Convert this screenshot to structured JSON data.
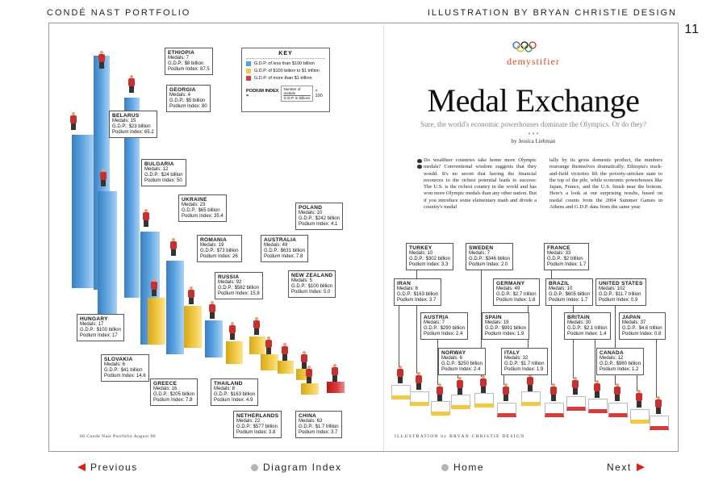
{
  "header": {
    "left": "CONDÉ NAST PORTFOLIO",
    "right": "ILLUSTRATION BY BRYAN CHRISTIE DESIGN",
    "page_number": "11"
  },
  "article": {
    "section": "demystifier",
    "title": "Medal Exchange",
    "subtitle": "Sure, the world's economic powerhouses dominate the Olympics. Or do they?",
    "byline": "by Jessica Liebman",
    "body_col1": "Do wealthier countries take home more Olympic medals? Conventional wisdom suggests that they would. It's no secret that having the financial resources to the richest potential leads to success: The U.S. is the richest country in the world and has won more Olympic medals than any other nation. But if you introduce some elementary math and divide a country's medal",
    "body_col2": "tally by its gross domestic product, the numbers rearrange themselves dramatically. Ethiopia's track-and-field victories lift the poverty-stricken state to the top of the pile, while economic powerhouses like Japan, France, and the U.S. finish near the bottom. Here's a look at our surprising results, based on medal counts from the 2004 Summer Games in Athens and G.D.P. data from the same year."
  },
  "key": {
    "title": "KEY",
    "items": [
      {
        "label": "G.D.P. of less than $100 billion",
        "color": "#4ba3e3"
      },
      {
        "label": "G.D.P. of $100 billion to $1 trillion",
        "color": "#f4c842"
      },
      {
        "label": "G.D.P. of more than $1 trillion",
        "color": "#d93a3a"
      }
    ],
    "podium_label": "PODIUM INDEX =",
    "podium_num": "Number of medals",
    "podium_den": "G.D.P. in billions",
    "podium_mult": "× 100"
  },
  "countries": [
    {
      "id": "ethiopia",
      "name": "ETHIOPIA",
      "medals": "Medals: 7",
      "gdp": "G.D.P.: $8 billion",
      "index": "Podium Index: 87.5",
      "color": "blue"
    },
    {
      "id": "georgia",
      "name": "GEORGIA",
      "medals": "Medals: 4",
      "gdp": "G.D.P.: $5 billion",
      "index": "Podium Index: 80",
      "color": "blue"
    },
    {
      "id": "belarus",
      "name": "BELARUS",
      "medals": "Medals: 15",
      "gdp": "G.D.P.: $23 billion",
      "index": "Podium Index: 65.2",
      "color": "blue"
    },
    {
      "id": "bulgaria",
      "name": "BULGARIA",
      "medals": "Medals: 12",
      "gdp": "G.D.P.: $24 billion",
      "index": "Podium Index: 50",
      "color": "blue"
    },
    {
      "id": "ukraine",
      "name": "UKRAINE",
      "medals": "Medals: 23",
      "gdp": "G.D.P.: $65 billion",
      "index": "Podium Index: 35.4",
      "color": "blue"
    },
    {
      "id": "romania",
      "name": "ROMANIA",
      "medals": "Medals: 19",
      "gdp": "G.D.P.: $73 billion",
      "index": "Podium Index: 26",
      "color": "blue"
    },
    {
      "id": "russia",
      "name": "RUSSIA",
      "medals": "Medals: 92",
      "gdp": "G.D.P.: $582 billion",
      "index": "Podium Index: 15.8",
      "color": "yellow"
    },
    {
      "id": "hungary",
      "name": "HUNGARY",
      "medals": "Medals: 17",
      "gdp": "G.D.P.: $100 billion",
      "index": "Podium Index: 17",
      "color": "yellow"
    },
    {
      "id": "australia",
      "name": "AUSTRALIA",
      "medals": "Medals: 49",
      "gdp": "G.D.P.: $631 billion",
      "index": "Podium Index: 7.8",
      "color": "yellow"
    },
    {
      "id": "poland",
      "name": "POLAND",
      "medals": "Medals: 10",
      "gdp": "G.D.P.: $242 billion",
      "index": "Podium Index: 4.1",
      "color": "yellow"
    },
    {
      "id": "newzealand",
      "name": "NEW ZEALAND",
      "medals": "Medals: 5",
      "gdp": "G.D.P.: $100 billion",
      "index": "Podium Index: 5.0",
      "color": "yellow"
    },
    {
      "id": "slovakia",
      "name": "SLOVAKIA",
      "medals": "Medals: 6",
      "gdp": "G.D.P.: $41 billion",
      "index": "Podium Index: 14.6",
      "color": "blue"
    },
    {
      "id": "greece",
      "name": "GREECE",
      "medals": "Medals: 16",
      "gdp": "G.D.P.: $205 billion",
      "index": "Podium Index: 7.8",
      "color": "yellow"
    },
    {
      "id": "thailand",
      "name": "THAILAND",
      "medals": "Medals: 8",
      "gdp": "G.D.P.: $163 billion",
      "index": "Podium Index: 4.9",
      "color": "yellow"
    },
    {
      "id": "netherlands",
      "name": "NETHERLANDS",
      "medals": "Medals: 22",
      "gdp": "G.D.P.: $577 billion",
      "index": "Podium Index: 3.8",
      "color": "yellow"
    },
    {
      "id": "china",
      "name": "CHINA",
      "medals": "Medals: 63",
      "gdp": "G.D.P.: $1.7 trillion",
      "index": "Podium Index: 3.7",
      "color": "red"
    },
    {
      "id": "turkey",
      "name": "TURKEY",
      "medals": "Medals: 10",
      "gdp": "G.D.P.: $302 billion",
      "index": "Podium Index: 3.3",
      "color": "yellow"
    },
    {
      "id": "sweden",
      "name": "SWEDEN",
      "medals": "Medals: 7",
      "gdp": "G.D.P.: $346 billion",
      "index": "Podium Index: 2.0",
      "color": "yellow"
    },
    {
      "id": "france",
      "name": "FRANCE",
      "medals": "Medals: 33",
      "gdp": "G.D.P.: $2 trillion",
      "index": "Podium Index: 1.7",
      "color": "red"
    },
    {
      "id": "iran",
      "name": "IRAN",
      "medals": "Medals: 6",
      "gdp": "G.D.P.: $163 billion",
      "index": "Podium Index: 3.7",
      "color": "yellow"
    },
    {
      "id": "germany",
      "name": "GERMANY",
      "medals": "Medals: 49",
      "gdp": "G.D.P.: $2.7 trillion",
      "index": "Podium Index: 1.8",
      "color": "red"
    },
    {
      "id": "brazil",
      "name": "BRAZIL",
      "medals": "Medals: 10",
      "gdp": "G.D.P.: $605 billion",
      "index": "Podium Index: 1.7",
      "color": "yellow"
    },
    {
      "id": "unitedstates",
      "name": "UNITED STATES",
      "medals": "Medals: 102",
      "gdp": "G.D.P.: $11.7 trillion",
      "index": "Podium Index: 0.9",
      "color": "red"
    },
    {
      "id": "austria",
      "name": "AUSTRIA",
      "medals": "Medals: 7",
      "gdp": "G.D.P.: $290 billion",
      "index": "Podium Index: 2.4",
      "color": "yellow"
    },
    {
      "id": "spain",
      "name": "SPAIN",
      "medals": "Medals: 19",
      "gdp": "G.D.P.: $991 billion",
      "index": "Podium Index: 1.9",
      "color": "yellow"
    },
    {
      "id": "britain",
      "name": "BRITAIN",
      "medals": "Medals: 30",
      "gdp": "G.D.P.: $2.1 trillion",
      "index": "Podium Index: 1.4",
      "color": "red"
    },
    {
      "id": "japan",
      "name": "JAPAN",
      "medals": "Medals: 37",
      "gdp": "G.D.P.: $4.6 trillion",
      "index": "Podium Index: 0.8",
      "color": "red"
    },
    {
      "id": "norway",
      "name": "NORWAY",
      "medals": "Medals: 6",
      "gdp": "G.D.P.: $250 billion",
      "index": "Podium Index: 2.4",
      "color": "yellow"
    },
    {
      "id": "italy",
      "name": "ITALY",
      "medals": "Medals: 32",
      "gdp": "G.D.P.: $1.7 trillion",
      "index": "Podium Index: 1.9",
      "color": "red"
    },
    {
      "id": "canada",
      "name": "CANADA",
      "medals": "Medals: 12",
      "gdp": "G.D.P.: $980 billion",
      "index": "Podium Index: 1.2",
      "color": "yellow"
    }
  ],
  "footer": {
    "left": "66 Condé Nast Portfolio August 06",
    "right": "ILLUSTRATION by BRYAN CHRISTIE DESIGN"
  },
  "nav": {
    "previous": "Previous",
    "index": "Diagram Index",
    "home": "Home",
    "next": "Next"
  },
  "colors": {
    "accent_red": "#e0201d",
    "blue": "#4ba3e3",
    "yellow": "#f4c842",
    "red": "#d93a3a"
  }
}
